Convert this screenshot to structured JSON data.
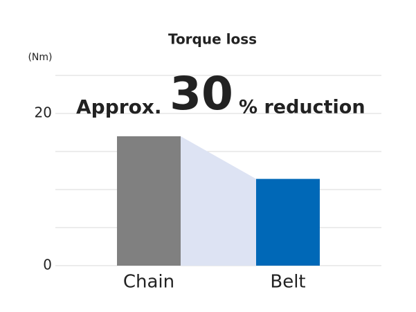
{
  "chart_data": {
    "type": "bar",
    "title": "Torque loss",
    "y_label": "(Nm)",
    "categories": [
      "Chain",
      "Belt"
    ],
    "values": [
      17,
      11.4
    ],
    "colors": [
      "#808080",
      "#0068b7"
    ],
    "shade_color": "#dde3f3",
    "ylim": [
      0,
      25
    ],
    "yticks": [
      0,
      20
    ],
    "ygrid": [
      5,
      10,
      15,
      25
    ],
    "grid": true,
    "annotation": {
      "prefix": "Approx.",
      "number": "30",
      "suffix": "% reduction",
      "color": "#0068b7"
    }
  }
}
